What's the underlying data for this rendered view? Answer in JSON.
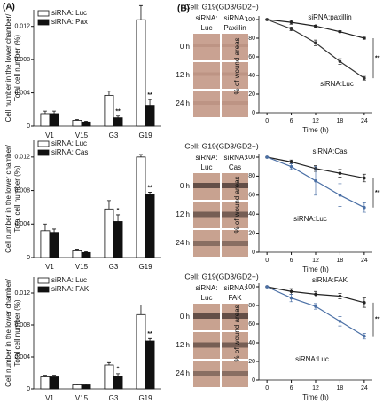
{
  "panels": [
    "(A)",
    "(B)"
  ],
  "micrographs": [
    {
      "title": "Cell: G19(GD3/GD2+)",
      "columns": [
        [
          "siRNA:",
          "Luc"
        ],
        [
          "siRNA:",
          "Paxillin"
        ]
      ],
      "rows": [
        "0 h",
        "12 h",
        "24 h"
      ]
    },
    {
      "title": "Cell: G19(GD3/GD2+)",
      "columns": [
        [
          "siRNA:",
          "Luc"
        ],
        [
          "siRNA:",
          "Cas"
        ]
      ],
      "rows": [
        "0 h",
        "12 h",
        "24 h"
      ]
    },
    {
      "title": "Cell: G19(GD3/GD2+)",
      "columns": [
        [
          "siRNA:",
          "Luc"
        ],
        [
          "siRNA:",
          "FAK"
        ]
      ],
      "rows": [
        "0 h",
        "12 h",
        "24 h"
      ]
    }
  ],
  "chart_data": [
    {
      "type": "bar",
      "y_label": [
        "Cell number in the lower chamber/",
        "Total cell number (%)"
      ],
      "categories": [
        "V1",
        "V15",
        "G3",
        "G19"
      ],
      "ylim": [
        0,
        0.014
      ],
      "yticks": [
        0,
        0.004,
        0.008,
        0.012
      ],
      "series": [
        {
          "name": "siRNA: Luc",
          "color": "#ffffff",
          "values": [
            0.0015,
            0.0007,
            0.0037,
            0.0128
          ],
          "errors": [
            0.0003,
            0.0001,
            0.0005,
            0.0017
          ],
          "sig_labels": [
            null,
            null,
            null,
            null
          ]
        },
        {
          "name": "siRNA: Pax",
          "color": "#111111",
          "values": [
            0.0015,
            0.0005,
            0.001,
            0.0025
          ],
          "errors": [
            0.0003,
            0.0001,
            0.0002,
            0.0007
          ],
          "sig_labels": [
            null,
            null,
            "**",
            "**"
          ]
        }
      ]
    },
    {
      "type": "bar",
      "y_label": [
        "Cell number in the lower chamber/",
        "Total cell number (%)"
      ],
      "categories": [
        "V1",
        "V15",
        "G3",
        "G19"
      ],
      "ylim": [
        0,
        0.014
      ],
      "yticks": [
        0,
        0.004,
        0.008,
        0.012
      ],
      "series": [
        {
          "name": "siRNA: Luc",
          "color": "#ffffff",
          "values": [
            0.0032,
            0.0008,
            0.0058,
            0.012
          ],
          "errors": [
            0.0008,
            0.0002,
            0.001,
            0.0003
          ],
          "sig_labels": [
            null,
            null,
            null,
            null
          ]
        },
        {
          "name": "siRNA: Cas",
          "color": "#111111",
          "values": [
            0.003,
            0.0006,
            0.0043,
            0.0075
          ],
          "errors": [
            0.0004,
            0.0001,
            0.0008,
            0.0003
          ],
          "sig_labels": [
            null,
            null,
            "*",
            "**"
          ]
        }
      ]
    },
    {
      "type": "bar",
      "y_label": [
        "Cell number in the lower chamber/",
        "Total cell number (%)"
      ],
      "categories": [
        "V1",
        "V15",
        "G3",
        "G19"
      ],
      "ylim": [
        0,
        0.014
      ],
      "yticks": [
        0,
        0.004,
        0.008,
        0.012
      ],
      "series": [
        {
          "name": "siRNA: Luc",
          "color": "#ffffff",
          "values": [
            0.0015,
            0.0005,
            0.003,
            0.0093
          ],
          "errors": [
            0.0002,
            0.0001,
            0.0003,
            0.0012
          ],
          "sig_labels": [
            null,
            null,
            null,
            null
          ]
        },
        {
          "name": "siRNA: FAK",
          "color": "#111111",
          "values": [
            0.0015,
            0.0005,
            0.0016,
            0.006
          ],
          "errors": [
            0.0002,
            0.0001,
            0.0003,
            0.0003
          ],
          "sig_labels": [
            null,
            null,
            "*",
            "**"
          ]
        }
      ]
    },
    {
      "type": "line",
      "x_label": "Time (h)",
      "y_label": "% of wound areas",
      "x": [
        0,
        6,
        12,
        18,
        24
      ],
      "xlim": [
        -2,
        26
      ],
      "xticks": [
        0,
        6,
        12,
        18,
        24
      ],
      "ylim": [
        0,
        100
      ],
      "yticks": [
        0,
        20,
        40,
        60,
        80,
        100
      ],
      "sig_label": "**",
      "series": [
        {
          "name": "siRNA:paxillin",
          "color": "#222222",
          "values": [
            100,
            97,
            93,
            87,
            80
          ],
          "errors": [
            0,
            2,
            1,
            1,
            1
          ]
        },
        {
          "name": "siRNA:Luc",
          "color": "#333333",
          "values": [
            100,
            90,
            75,
            55,
            37
          ],
          "errors": [
            0,
            2,
            3,
            3,
            2
          ]
        }
      ]
    },
    {
      "type": "line",
      "x_label": "Time (h)",
      "y_label": "% of wound areas",
      "x": [
        0,
        6,
        12,
        18,
        24
      ],
      "xlim": [
        -2,
        26
      ],
      "xticks": [
        0,
        6,
        12,
        18,
        24
      ],
      "ylim": [
        0,
        100
      ],
      "yticks": [
        0,
        20,
        40,
        60,
        80,
        100
      ],
      "sig_label": "**",
      "series": [
        {
          "name": "siRNA:Cas",
          "color": "#222222",
          "values": [
            100,
            95,
            88,
            83,
            78
          ],
          "errors": [
            0,
            2,
            3,
            4,
            4
          ]
        },
        {
          "name": "siRNA:Luc",
          "color": "#4a6fa5",
          "values": [
            100,
            90,
            75,
            60,
            47
          ],
          "errors": [
            0,
            3,
            15,
            12,
            5
          ]
        }
      ]
    },
    {
      "type": "line",
      "x_label": "Time (h)",
      "y_label": "% of wound areas",
      "x": [
        0,
        6,
        12,
        18,
        24
      ],
      "xlim": [
        -2,
        26
      ],
      "xticks": [
        0,
        6,
        12,
        18,
        24
      ],
      "ylim": [
        0,
        100
      ],
      "yticks": [
        0,
        20,
        40,
        60,
        80,
        100
      ],
      "sig_label": "**",
      "series": [
        {
          "name": "siRNA:FAK",
          "color": "#222222",
          "values": [
            100,
            95,
            92,
            90,
            83
          ],
          "errors": [
            0,
            3,
            3,
            3,
            5
          ]
        },
        {
          "name": "siRNA:Luc",
          "color": "#4a6fa5",
          "values": [
            100,
            88,
            79,
            63,
            47
          ],
          "errors": [
            0,
            4,
            3,
            5,
            3
          ]
        }
      ]
    }
  ]
}
